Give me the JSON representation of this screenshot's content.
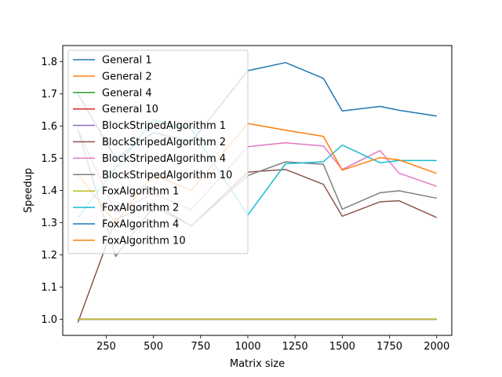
{
  "chart_data": {
    "type": "line",
    "title": "",
    "xlabel": "Matrix size",
    "ylabel": "Speedup",
    "xlim": [
      20,
      2080
    ],
    "ylim": [
      0.95,
      1.85
    ],
    "xticks": [
      250,
      500,
      750,
      1000,
      1250,
      1500,
      1750,
      2000
    ],
    "xtick_labels": [
      "250",
      "500",
      "750",
      "1000",
      "1250",
      "1500",
      "1750",
      "2000"
    ],
    "yticks": [
      1.0,
      1.1,
      1.2,
      1.3,
      1.4,
      1.5,
      1.6,
      1.7,
      1.8
    ],
    "ytick_labels": [
      "1.0",
      "1.1",
      "1.2",
      "1.3",
      "1.4",
      "1.5",
      "1.6",
      "1.7",
      "1.8"
    ],
    "grid": false,
    "legend_position": "top-left",
    "x": [
      100,
      300,
      500,
      700,
      1000,
      1200,
      1400,
      1500,
      1700,
      1800,
      2000
    ],
    "series": [
      {
        "name": "General 1",
        "color": "#1f77b4",
        "values": [
          1.0,
          1.0,
          1.0,
          1.0,
          1.0,
          1.0,
          1.0,
          1.0,
          1.0,
          1.0,
          1.0
        ]
      },
      {
        "name": "General 2",
        "color": "#ff7f0e",
        "values": [
          1.0,
          1.0,
          1.0,
          1.0,
          1.0,
          1.0,
          1.0,
          1.0,
          1.0,
          1.0,
          1.0
        ]
      },
      {
        "name": "General 4",
        "color": "#2ca02c",
        "values": [
          1.0,
          1.0,
          1.0,
          1.0,
          1.0,
          1.0,
          1.0,
          1.0,
          1.0,
          1.0,
          1.0
        ]
      },
      {
        "name": "General 10",
        "color": "#d62728",
        "values": [
          1.0,
          1.0,
          1.0,
          1.0,
          1.0,
          1.0,
          1.0,
          1.0,
          1.0,
          1.0,
          1.0
        ]
      },
      {
        "name": "BlockStripedAlgorithm 1",
        "color": "#9467bd",
        "values": [
          1.0,
          1.0,
          1.0,
          1.0,
          1.0,
          1.0,
          1.0,
          1.0,
          1.0,
          1.0,
          1.0
        ]
      },
      {
        "name": "BlockStripedAlgorithm 2",
        "color": "#8c564b",
        "values": [
          0.99,
          1.31,
          1.36,
          1.29,
          1.457,
          1.465,
          1.419,
          1.32,
          1.365,
          1.368,
          1.316
        ]
      },
      {
        "name": "BlockStripedAlgorithm 4",
        "color": "#e377c2",
        "values": [
          1.59,
          1.33,
          1.39,
          1.34,
          1.536,
          1.548,
          1.538,
          1.465,
          1.524,
          1.454,
          1.413
        ]
      },
      {
        "name": "BlockStripedAlgorithm 10",
        "color": "#7f7f7f",
        "values": [
          1.59,
          1.195,
          1.35,
          1.29,
          1.446,
          1.489,
          1.481,
          1.342,
          1.393,
          1.399,
          1.376
        ]
      },
      {
        "name": "FoxAlgorithm 1",
        "color": "#bcbd22",
        "values": [
          1.0,
          1.0,
          1.0,
          1.0,
          1.0,
          1.0,
          1.0,
          1.0,
          1.0,
          1.0,
          1.0
        ]
      },
      {
        "name": "FoxAlgorithm 2",
        "color": "#17becf",
        "values": [
          1.315,
          1.47,
          1.62,
          1.59,
          1.324,
          1.483,
          1.489,
          1.541,
          1.486,
          1.493,
          1.493
        ]
      },
      {
        "name": "FoxAlgorithm 4",
        "color": "#1f77b4",
        "values": [
          1.7,
          1.5,
          1.58,
          1.55,
          1.772,
          1.797,
          1.748,
          1.647,
          1.661,
          1.649,
          1.631
        ]
      },
      {
        "name": "FoxAlgorithm 10",
        "color": "#ff7f0e",
        "values": [
          1.45,
          1.3,
          1.45,
          1.4,
          1.608,
          1.587,
          1.568,
          1.463,
          1.502,
          1.495,
          1.453
        ]
      }
    ]
  }
}
